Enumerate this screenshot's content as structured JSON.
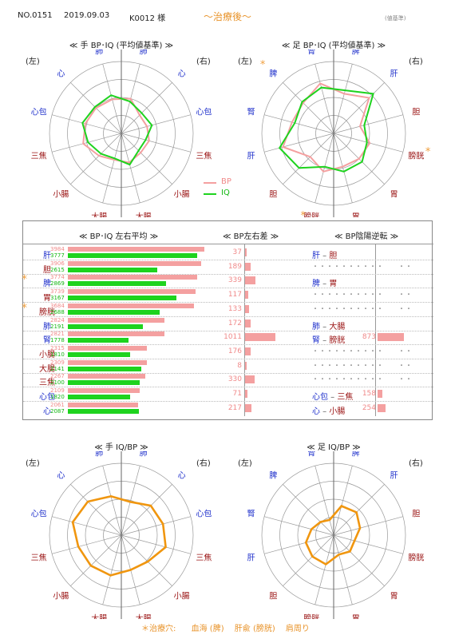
{
  "header": {
    "record_no": "NO.0151",
    "date": "2019.09.03",
    "patient": "K0012 様",
    "stage": "～治療後～",
    "basis": "(値基準)"
  },
  "labels": {
    "left": "(左)",
    "right": "(右)"
  },
  "legend": {
    "bp": "BP",
    "iq": "IQ"
  },
  "colors": {
    "bp": "#f4a0a0",
    "iq": "#1ed31e",
    "ratio": "#f0960f",
    "star": "#f0a040",
    "yin": "#2233cc",
    "yang": "#991111"
  },
  "footer": {
    "label": "＊治療穴:",
    "points": "血海 (脾)　 肝兪 (膀胱)　 肩周り"
  },
  "panel": {
    "avg_title": "≪ BP･IQ 左右平均 ≫",
    "diff_title": "≪ BP左右差 ≫",
    "rev_title": "≪ BP陰陽逆転 ≫"
  },
  "chart_data": [
    {
      "id": "hand-bpiq",
      "type": "radar",
      "title": "≪ 手 BP･IQ (平均値基準) ≫",
      "axes": [
        "肺",
        "心",
        "心包",
        "三焦",
        "小腸",
        "大腸",
        "大腸",
        "小腸",
        "三焦",
        "心包",
        "心",
        "肺"
      ],
      "series": [
        {
          "name": "BP",
          "values": [
            0.5,
            0.36,
            0.37,
            0.4,
            0.38,
            0.42,
            0.38,
            0.44,
            0.55,
            0.52,
            0.5,
            0.49
          ]
        },
        {
          "name": "IQ",
          "values": [
            0.46,
            0.4,
            0.44,
            0.35,
            0.34,
            0.45,
            0.36,
            0.4,
            0.48,
            0.56,
            0.52,
            0.55
          ]
        }
      ],
      "rmax": 1
    },
    {
      "id": "foot-bpiq",
      "type": "radar",
      "title": "≪ 足 BP･IQ (平均値基準) ≫",
      "axes": [
        "脾",
        "肝",
        "胆",
        "膀胱",
        "胃",
        "胃",
        "膀胱",
        "胆",
        "肝",
        "腎",
        "脾",
        "腎"
      ],
      "series": [
        {
          "name": "BP",
          "values": [
            0.57,
            0.7,
            0.38,
            0.52,
            0.5,
            0.48,
            0.55,
            0.46,
            0.73,
            0.6,
            0.6,
            0.72
          ]
        },
        {
          "name": "IQ",
          "values": [
            0.62,
            0.78,
            0.44,
            0.48,
            0.56,
            0.55,
            0.48,
            0.68,
            0.78,
            0.56,
            0.62,
            0.66
          ]
        }
      ],
      "rmax": 1
    },
    {
      "id": "hand-iqbp",
      "type": "radar",
      "title": "≪ 手 IQ/BP ≫",
      "axes": [
        "肺",
        "心",
        "心包",
        "三焦",
        "小腸",
        "大腸",
        "大腸",
        "小腸",
        "三焦",
        "心包",
        "心",
        "肺"
      ],
      "series": [
        {
          "name": "IQ/BP",
          "values": [
            0.48,
            0.58,
            0.6,
            0.64,
            0.52,
            0.5,
            0.58,
            0.6,
            0.62,
            0.7,
            0.66,
            0.56
          ]
        }
      ],
      "rmax": 1
    },
    {
      "id": "foot-iqbp",
      "type": "radar",
      "title": "≪ 足 IQ/BP ≫",
      "axes": [
        "脾",
        "肝",
        "胆",
        "膀胱",
        "胃",
        "胃",
        "膀胱",
        "胆",
        "肝",
        "腎",
        "脾",
        "腎"
      ],
      "series": [
        {
          "name": "IQ/BP",
          "values": [
            0.42,
            0.45,
            0.38,
            0.3,
            0.32,
            0.28,
            0.42,
            0.42,
            0.4,
            0.32,
            0.26,
            0.22
          ]
        }
      ],
      "rmax": 1
    },
    {
      "id": "bpiq-average",
      "type": "bar",
      "categories": [
        "肝",
        "胆",
        "脾",
        "胃",
        "膀胱",
        "肺",
        "腎",
        "小腸",
        "大腸",
        "三焦",
        "心包",
        "心"
      ],
      "starred": [
        false,
        false,
        true,
        false,
        true,
        false,
        false,
        false,
        false,
        false,
        false,
        false
      ],
      "series": [
        {
          "name": "BP",
          "values": [
            3984,
            3906,
            3774,
            3739,
            3684,
            2824,
            2821,
            2315,
            2309,
            2267,
            2109,
            2061
          ]
        },
        {
          "name": "IQ",
          "values": [
            3777,
            2615,
            2869,
            3167,
            2688,
            2191,
            1778,
            1810,
            2141,
            2100,
            1820,
            2087
          ]
        }
      ],
      "xmax": 4200
    },
    {
      "id": "bp-diff",
      "type": "bar",
      "categories": [
        "肝",
        "胆",
        "脾",
        "胃",
        "膀胱",
        "肺",
        "腎",
        "小腸",
        "大腸",
        "三焦",
        "心包",
        "心"
      ],
      "values": [
        37,
        189,
        339,
        117,
        133,
        172,
        1011,
        176,
        8,
        330,
        71,
        217
      ],
      "xmax": 1200
    },
    {
      "id": "bp-yinyang",
      "type": "table",
      "rows": [
        {
          "yin": "肝",
          "yang": "胆",
          "value": null
        },
        {
          "yin": "",
          "yang": "",
          "value": null
        },
        {
          "yin": "脾",
          "yang": "胃",
          "value": null
        },
        {
          "yin": "",
          "yang": "",
          "value": null
        },
        {
          "yin": "",
          "yang": "",
          "value": null
        },
        {
          "yin": "肺",
          "yang": "大腸",
          "value": null
        },
        {
          "yin": "腎",
          "yang": "膀胱",
          "value": "873"
        },
        {
          "yin": "",
          "yang": "",
          "value": null
        },
        {
          "yin": "",
          "yang": "",
          "value": null
        },
        {
          "yin": "",
          "yang": "",
          "value": null
        },
        {
          "yin": "心包",
          "yang": "三焦",
          "value": "158"
        },
        {
          "yin": "心",
          "yang": "小腸",
          "value": "254"
        }
      ],
      "dots": "・・・・・・・・・・　　・・",
      "xmax": 1200
    }
  ]
}
